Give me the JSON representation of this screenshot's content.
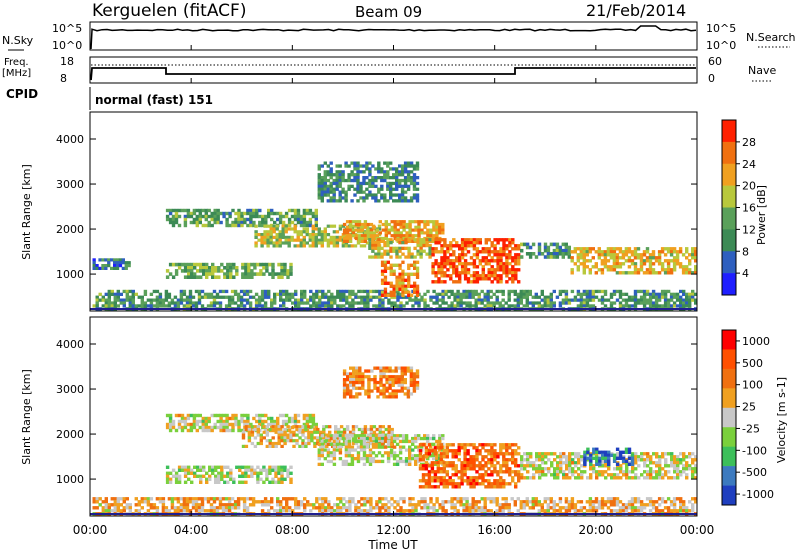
{
  "header": {
    "station": "Kerguelen (fitACF)",
    "beam": "Beam 09",
    "date": "21/Feb/2014"
  },
  "top_panels": {
    "nsky_label": "N.Sky",
    "nsearch_label": "N.Search",
    "nsky_ticks": [
      "10^5",
      "10^0"
    ],
    "nsearch_ticks": [
      "10^5",
      "10^0"
    ],
    "freq_label_1": "Freq.",
    "freq_label_2": "[MHz]",
    "freq_ticks": [
      "18",
      "8"
    ],
    "nave_label": "Nave",
    "nave_ticks": [
      "60",
      "0"
    ],
    "cpid_label": "CPID",
    "cpid_value": "normal (fast) 151"
  },
  "time_axis": {
    "label": "Time UT",
    "ticks": [
      "00:00",
      "04:00",
      "08:00",
      "12:00",
      "16:00",
      "20:00",
      "00:00"
    ]
  },
  "colors": {
    "power": [
      "#1f1fff",
      "#2e5fbf",
      "#3c8a55",
      "#5aa05a",
      "#b8c83c",
      "#f0a020",
      "#f07010",
      "#ff2000"
    ],
    "velocity": [
      "#1f3fbf",
      "#3c7abf",
      "#3cbf5a",
      "#7ad03c",
      "#c8c8c8",
      "#f0a020",
      "#f07010",
      "#ff5000",
      "#ff0000"
    ]
  },
  "chart_data": [
    {
      "type": "heatmap",
      "title": "",
      "ylabel": "Slant Range [km]",
      "xlabel": "",
      "x_range_hours": [
        0,
        24
      ],
      "ylim": [
        180,
        4600
      ],
      "y_ticks": [
        "1000",
        "2000",
        "3000",
        "4000"
      ],
      "y_tick_values": [
        1000,
        2000,
        3000,
        4000
      ],
      "colorbar_label": "Power [dB]",
      "colorbar_ticks": [
        "4",
        "8",
        "12",
        "16",
        "20",
        "24",
        "28"
      ],
      "colorbar_range": [
        0,
        32
      ],
      "regions": [
        {
          "t0": 0.1,
          "t1": 1.6,
          "r0": 1100,
          "r1": 1350,
          "level": 0.25
        },
        {
          "t0": 0.1,
          "t1": 24,
          "r0": 200,
          "r1": 650,
          "level": 0.35
        },
        {
          "t0": 3.0,
          "t1": 8.0,
          "r0": 900,
          "r1": 1250,
          "level": 0.45
        },
        {
          "t0": 3.0,
          "t1": 9.0,
          "r0": 2050,
          "r1": 2450,
          "level": 0.4
        },
        {
          "t0": 6.5,
          "t1": 11.5,
          "r0": 1600,
          "r1": 2100,
          "level": 0.55
        },
        {
          "t0": 10.0,
          "t1": 14.0,
          "r0": 1700,
          "r1": 2200,
          "level": 0.7
        },
        {
          "t0": 11.0,
          "t1": 13.5,
          "r0": 1350,
          "r1": 1800,
          "level": 0.6
        },
        {
          "t0": 13.5,
          "t1": 17.0,
          "r0": 800,
          "r1": 1800,
          "level": 0.85
        },
        {
          "t0": 11.5,
          "t1": 13.0,
          "r0": 500,
          "r1": 1300,
          "level": 0.75
        },
        {
          "t0": 17.0,
          "t1": 19.0,
          "r0": 1350,
          "r1": 1700,
          "level": 0.35
        },
        {
          "t0": 19.0,
          "t1": 24.0,
          "r0": 1000,
          "r1": 1600,
          "level": 0.65
        },
        {
          "t0": 9.0,
          "t1": 13.0,
          "r0": 2600,
          "r1": 3500,
          "level": 0.3
        }
      ]
    },
    {
      "type": "heatmap",
      "title": "",
      "ylabel": "Slant Range [km]",
      "xlabel": "Time UT",
      "x_range_hours": [
        0,
        24
      ],
      "ylim": [
        180,
        4600
      ],
      "y_ticks": [
        "1000",
        "2000",
        "3000",
        "4000"
      ],
      "y_tick_values": [
        1000,
        2000,
        3000,
        4000
      ],
      "colorbar_label": "Velocity [m s-1]",
      "colorbar_ticks": [
        "1000",
        "500",
        "100",
        "25",
        "-25",
        "-100",
        "-500",
        "-1000"
      ],
      "regions": [
        {
          "t0": 0.1,
          "t1": 24,
          "r0": 200,
          "r1": 600,
          "level": 0.6
        },
        {
          "t0": 3.0,
          "t1": 8.0,
          "r0": 900,
          "r1": 1300,
          "level": 0.45
        },
        {
          "t0": 3.0,
          "t1": 9.0,
          "r0": 2050,
          "r1": 2450,
          "level": 0.5
        },
        {
          "t0": 6.0,
          "t1": 12.0,
          "r0": 1700,
          "r1": 2200,
          "level": 0.55
        },
        {
          "t0": 9.0,
          "t1": 14.0,
          "r0": 1300,
          "r1": 2000,
          "level": 0.5
        },
        {
          "t0": 13.0,
          "t1": 17.0,
          "r0": 800,
          "r1": 1800,
          "level": 0.75
        },
        {
          "t0": 17.0,
          "t1": 24.0,
          "r0": 1000,
          "r1": 1600,
          "level": 0.5
        },
        {
          "t0": 10.0,
          "t1": 13.0,
          "r0": 2800,
          "r1": 3500,
          "level": 0.7
        },
        {
          "t0": 19.5,
          "t1": 21.5,
          "r0": 1300,
          "r1": 1700,
          "level": 0.15
        }
      ]
    }
  ]
}
